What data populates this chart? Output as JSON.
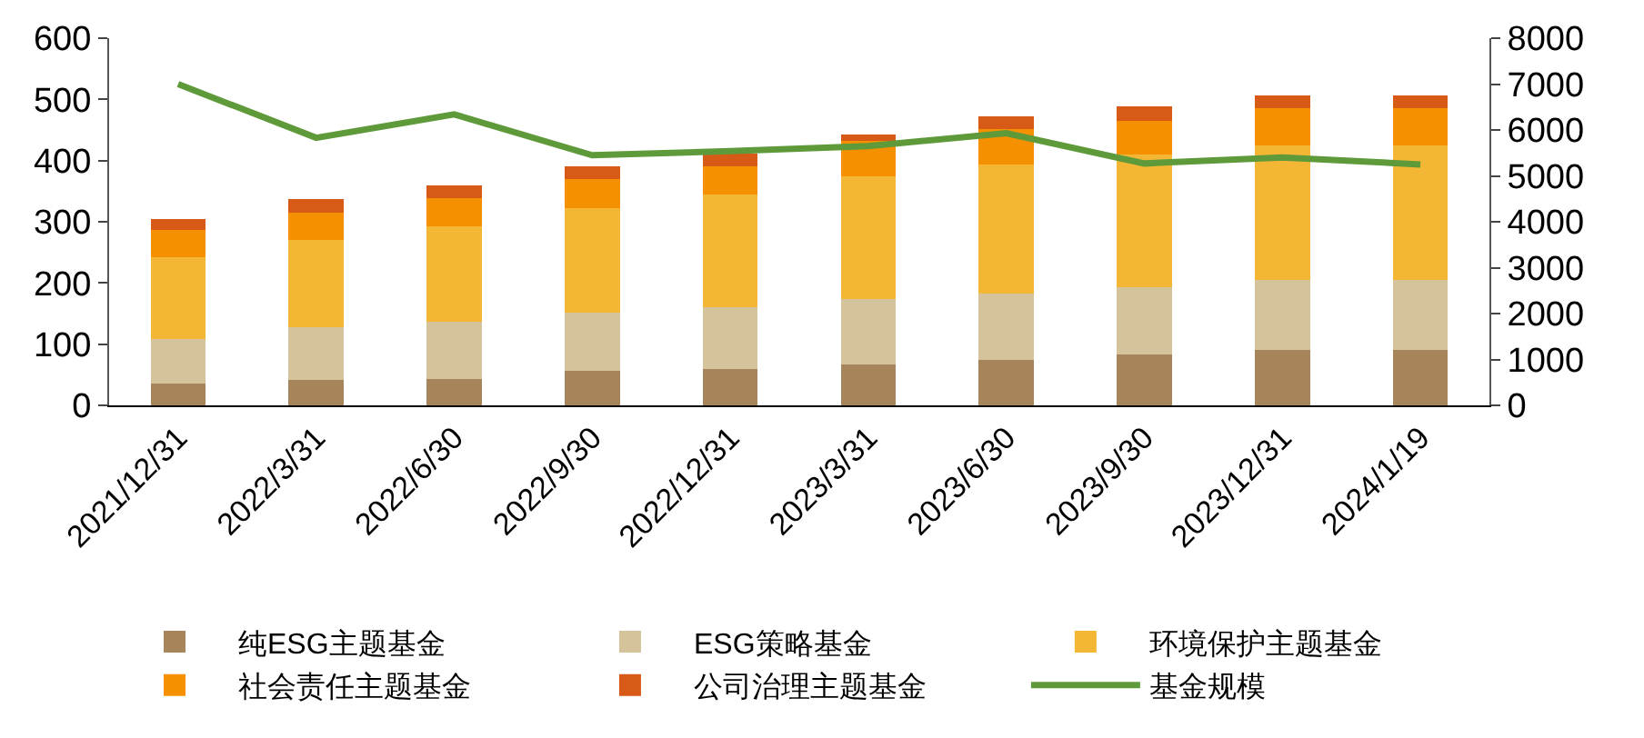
{
  "chart_data": {
    "type": "bar",
    "stacked": true,
    "categories": [
      "2021/12/31",
      "2022/3/31",
      "2022/6/30",
      "2022/9/30",
      "2022/12/31",
      "2023/3/31",
      "2023/6/30",
      "2023/9/30",
      "2023/12/31",
      "2024/1/19"
    ],
    "series": [
      {
        "name": "纯ESG主题基金",
        "color": "#a6855b",
        "values": [
          36,
          41,
          43,
          57,
          60,
          67,
          74,
          83,
          90,
          90
        ]
      },
      {
        "name": "ESG策略基金",
        "color": "#d5c39c",
        "values": [
          73,
          86,
          94,
          94,
          100,
          107,
          109,
          110,
          115,
          115
        ]
      },
      {
        "name": "环境保护主题基金",
        "color": "#f4b735",
        "values": [
          133,
          143,
          155,
          172,
          184,
          201,
          211,
          217,
          220,
          220
        ]
      },
      {
        "name": "社会责任主题基金",
        "color": "#f59100",
        "values": [
          44,
          45,
          46,
          47,
          46,
          57,
          58,
          55,
          61,
          61
        ]
      },
      {
        "name": "公司治理主题基金",
        "color": "#d85a17",
        "values": [
          19,
          22,
          21,
          21,
          22,
          10,
          21,
          23,
          21,
          21
        ]
      },
      {
        "name": "基金规模",
        "type": "line",
        "axis": "y2",
        "color": "#5f9a3a",
        "values": [
          7000,
          5830,
          6340,
          5450,
          5540,
          5650,
          5930,
          5270,
          5400,
          5250
        ]
      }
    ],
    "ylim": [
      0,
      600
    ],
    "yticks": [
      0,
      100,
      200,
      300,
      400,
      500,
      600
    ],
    "y2lim": [
      0,
      8000
    ],
    "y2ticks": [
      0,
      1000,
      2000,
      3000,
      4000,
      5000,
      6000,
      7000,
      8000
    ],
    "legend": "bottom",
    "marker": "none"
  }
}
